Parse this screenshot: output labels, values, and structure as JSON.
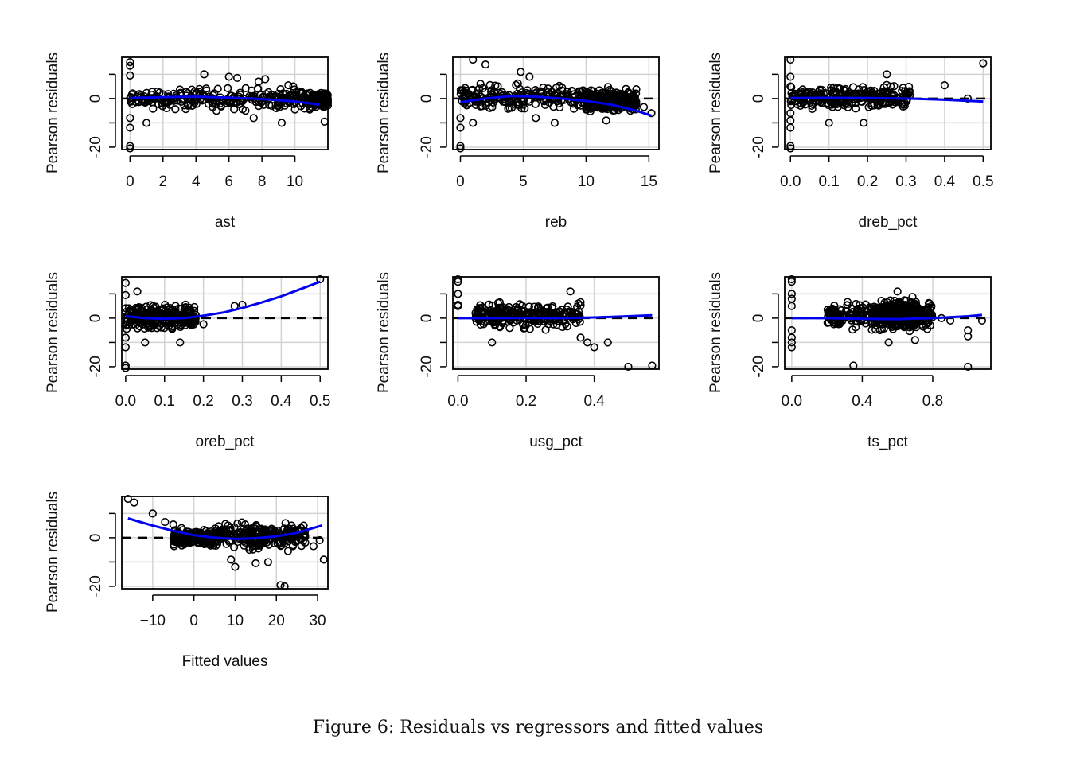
{
  "figure": {
    "caption": "Figure 6: Residuals vs regressors and fitted values"
  },
  "colors": {
    "smooth": "#0000ee",
    "points": "#000000",
    "grid": "#d3d3d3",
    "zero_line": "#000000"
  },
  "chart_data": [
    {
      "type": "scatter",
      "xlabel": "ast",
      "ylabel": "Pearson residuals",
      "xlim": [
        -0.5,
        12
      ],
      "ylim": [
        -21,
        17
      ],
      "xticks": [
        0,
        2,
        4,
        6,
        8,
        10
      ],
      "xtick_labels": [
        "0",
        "2",
        "4",
        "6",
        "8",
        "10"
      ],
      "yticks": [
        -20,
        -10,
        0,
        10
      ],
      "ytick_labels": [
        "-20",
        "",
        "0",
        ""
      ],
      "grid": true,
      "zero_line": "dashed",
      "cloud": [
        [
          0,
          11,
          -6,
          6
        ],
        [
          11,
          12,
          -4,
          3
        ]
      ],
      "points": [
        [
          0,
          15
        ],
        [
          0,
          13.5
        ],
        [
          0,
          9.5
        ],
        [
          0,
          -8
        ],
        [
          0,
          -12
        ],
        [
          0,
          -19.5
        ],
        [
          0,
          -20.5
        ],
        [
          1,
          -10
        ],
        [
          4.5,
          10
        ],
        [
          6,
          9
        ],
        [
          6.5,
          8.5
        ],
        [
          7,
          -5
        ],
        [
          7.5,
          -8
        ],
        [
          7.8,
          7
        ],
        [
          8.2,
          8
        ],
        [
          8.6,
          1.5
        ],
        [
          9,
          -3
        ],
        [
          9.2,
          -10
        ],
        [
          9.3,
          2
        ],
        [
          9.6,
          5.5
        ],
        [
          9.9,
          5
        ],
        [
          10,
          -4.5
        ],
        [
          10.5,
          0
        ],
        [
          10.9,
          -4
        ],
        [
          11.8,
          -9.5
        ],
        [
          9.5,
          -2
        ]
      ],
      "series": [
        {
          "x": [
            0,
            2,
            4,
            6,
            8,
            10,
            11.5
          ],
          "y": [
            0.2,
            0.6,
            0.8,
            0.4,
            -0.2,
            -1.2,
            -2.5
          ]
        }
      ]
    },
    {
      "type": "scatter",
      "xlabel": "reb",
      "ylabel": "Pearson residuals",
      "xlim": [
        -0.6,
        15.8
      ],
      "ylim": [
        -21,
        17
      ],
      "xticks": [
        0,
        5,
        10,
        15
      ],
      "xtick_labels": [
        "0",
        "5",
        "10",
        "15"
      ],
      "yticks": [
        -20,
        -10,
        0,
        10
      ],
      "ytick_labels": [
        "-20",
        "",
        "0",
        ""
      ],
      "grid": true,
      "zero_line": "dashed",
      "cloud": [
        [
          0,
          14,
          -6,
          7
        ],
        [
          10,
          14,
          -6,
          3
        ]
      ],
      "points": [
        [
          1,
          16
        ],
        [
          2,
          14
        ],
        [
          0,
          -8
        ],
        [
          0,
          -12
        ],
        [
          0,
          -19.5
        ],
        [
          0,
          -20.5
        ],
        [
          1,
          -10
        ],
        [
          4.8,
          11
        ],
        [
          5.5,
          9
        ],
        [
          7.5,
          -10
        ],
        [
          6,
          -8
        ],
        [
          11.6,
          -9
        ],
        [
          12.8,
          -3
        ],
        [
          13.5,
          -4
        ],
        [
          14,
          -2.5
        ],
        [
          14.6,
          -3.5
        ],
        [
          15.2,
          -6
        ]
      ],
      "series": [
        {
          "x": [
            0,
            2,
            4,
            6,
            8,
            10,
            12,
            14,
            15.2
          ],
          "y": [
            -1.5,
            0,
            1,
            0.8,
            0,
            -1,
            -2.5,
            -5,
            -7
          ]
        }
      ]
    },
    {
      "type": "scatter",
      "xlabel": "dreb_pct",
      "ylabel": "Pearson residuals",
      "xlim": [
        -0.015,
        0.52
      ],
      "ylim": [
        -21,
        17
      ],
      "xticks": [
        0,
        0.1,
        0.2,
        0.3,
        0.4,
        0.5
      ],
      "xtick_labels": [
        "0.0",
        "0.1",
        "0.2",
        "0.3",
        "0.4",
        "0.5"
      ],
      "yticks": [
        -20,
        -10,
        0,
        10
      ],
      "ytick_labels": [
        "-20",
        "",
        "0",
        ""
      ],
      "grid": true,
      "zero_line": "dashed",
      "cloud": [
        [
          0,
          0.31,
          -6,
          7
        ]
      ],
      "points": [
        [
          0,
          16
        ],
        [
          0,
          9
        ],
        [
          0,
          5
        ],
        [
          0,
          -6
        ],
        [
          0,
          -9
        ],
        [
          0,
          -12
        ],
        [
          0,
          -19.5
        ],
        [
          0,
          -20.5
        ],
        [
          0.1,
          -10
        ],
        [
          0.19,
          -10
        ],
        [
          0.25,
          10
        ],
        [
          0.26,
          5
        ],
        [
          0.4,
          5.5
        ],
        [
          0.46,
          0
        ],
        [
          0.5,
          14.5
        ]
      ],
      "series": [
        {
          "x": [
            0,
            0.1,
            0.2,
            0.3,
            0.4,
            0.5
          ],
          "y": [
            0.2,
            0.3,
            0.2,
            0,
            -0.5,
            -1.2
          ]
        }
      ]
    },
    {
      "type": "scatter",
      "xlabel": "oreb_pct",
      "ylabel": "Pearson residuals",
      "xlim": [
        -0.01,
        0.52
      ],
      "ylim": [
        -21,
        17
      ],
      "xticks": [
        0,
        0.1,
        0.2,
        0.3,
        0.4,
        0.5
      ],
      "xtick_labels": [
        "0.0",
        "0.1",
        "0.2",
        "0.3",
        "0.4",
        "0.5"
      ],
      "yticks": [
        -20,
        -10,
        0,
        10
      ],
      "ytick_labels": [
        "-20",
        "",
        "0",
        ""
      ],
      "grid": true,
      "zero_line": "dashed",
      "cloud": [
        [
          0,
          0.18,
          -6,
          7
        ]
      ],
      "points": [
        [
          0,
          14.5
        ],
        [
          0,
          9.5
        ],
        [
          0,
          -8
        ],
        [
          0,
          -12
        ],
        [
          0,
          -19.5
        ],
        [
          0,
          -20.5
        ],
        [
          0.03,
          11
        ],
        [
          0.05,
          -10
        ],
        [
          0.14,
          -10
        ],
        [
          0.2,
          -2.5
        ],
        [
          0.28,
          5
        ],
        [
          0.3,
          5.5
        ],
        [
          0.5,
          16
        ]
      ],
      "series": [
        {
          "x": [
            0,
            0.05,
            0.1,
            0.15,
            0.2,
            0.25,
            0.3,
            0.35,
            0.4,
            0.45,
            0.5
          ],
          "y": [
            0.8,
            0,
            -0.3,
            0,
            1,
            2.3,
            4.2,
            6.5,
            9,
            12,
            15
          ]
        }
      ]
    },
    {
      "type": "scatter",
      "xlabel": "usg_pct",
      "ylabel": "Pearson residuals",
      "xlim": [
        -0.015,
        0.59
      ],
      "ylim": [
        -21,
        17
      ],
      "xticks": [
        0,
        0.2,
        0.4
      ],
      "xtick_labels": [
        "0.0",
        "0.2",
        "0.4"
      ],
      "yticks": [
        -20,
        -10,
        0,
        10
      ],
      "ytick_labels": [
        "-20",
        "",
        "0",
        ""
      ],
      "grid": true,
      "zero_line": "dashed",
      "cloud": [
        [
          0.05,
          0.36,
          -6,
          8
        ]
      ],
      "points": [
        [
          0,
          16
        ],
        [
          0,
          15
        ],
        [
          0,
          10
        ],
        [
          0,
          5.5
        ],
        [
          0,
          5
        ],
        [
          0.1,
          -10
        ],
        [
          0.33,
          11
        ],
        [
          0.36,
          -8
        ],
        [
          0.38,
          -10
        ],
        [
          0.4,
          -12
        ],
        [
          0.44,
          -10
        ],
        [
          0.5,
          -20
        ],
        [
          0.57,
          -19.5
        ]
      ],
      "series": [
        {
          "x": [
            0,
            0.1,
            0.2,
            0.3,
            0.4,
            0.5,
            0.57
          ],
          "y": [
            0,
            0,
            0.1,
            0,
            0.3,
            0.8,
            1.2
          ]
        }
      ]
    },
    {
      "type": "scatter",
      "xlabel": "ts_pct",
      "ylabel": "Pearson residuals",
      "xlim": [
        -0.04,
        1.13
      ],
      "ylim": [
        -21,
        17
      ],
      "xticks": [
        0,
        0.4,
        0.8
      ],
      "xtick_labels": [
        "0.0",
        "0.4",
        "0.8"
      ],
      "yticks": [
        -20,
        -10,
        0,
        10
      ],
      "ytick_labels": [
        "-20",
        "",
        "0",
        ""
      ],
      "grid": true,
      "zero_line": "dashed",
      "cloud": [
        [
          0.2,
          0.8,
          -6,
          8
        ],
        [
          0.45,
          0.72,
          -8,
          10
        ]
      ],
      "points": [
        [
          0,
          16
        ],
        [
          0,
          15
        ],
        [
          0,
          10
        ],
        [
          0,
          8
        ],
        [
          0,
          5
        ],
        [
          0,
          -5
        ],
        [
          0,
          -8
        ],
        [
          0,
          -10
        ],
        [
          0,
          -12
        ],
        [
          0.35,
          -19.5
        ],
        [
          0.55,
          -10
        ],
        [
          0.6,
          11
        ],
        [
          0.7,
          -9
        ],
        [
          1,
          -5
        ],
        [
          1,
          -7.5
        ],
        [
          1,
          -20
        ],
        [
          1.08,
          -1
        ],
        [
          0.9,
          -1
        ],
        [
          0.85,
          0
        ]
      ],
      "series": [
        {
          "x": [
            0,
            0.2,
            0.4,
            0.6,
            0.8,
            1,
            1.08
          ],
          "y": [
            0,
            0,
            -0.3,
            -0.4,
            0,
            0.8,
            1.3
          ]
        }
      ]
    },
    {
      "type": "scatter",
      "xlabel": "Fitted values",
      "ylabel": "Pearson residuals",
      "xlim": [
        -17.5,
        32.5
      ],
      "ylim": [
        -21,
        17
      ],
      "xticks": [
        -10,
        0,
        10,
        20,
        30
      ],
      "xtick_labels": [
        "−10",
        "0",
        "10",
        "20",
        "30"
      ],
      "yticks": [
        -20,
        -10,
        0,
        10
      ],
      "ytick_labels": [
        "-20",
        "",
        "0",
        ""
      ],
      "grid": true,
      "zero_line": "dashed",
      "cloud": [
        [
          -5,
          5,
          -4,
          4
        ],
        [
          5,
          27,
          -6,
          8
        ]
      ],
      "points": [
        [
          -16,
          16
        ],
        [
          -14.5,
          14.5
        ],
        [
          -10,
          10
        ],
        [
          -7,
          6.5
        ],
        [
          -5,
          5.5
        ],
        [
          -3,
          4
        ],
        [
          9,
          -9
        ],
        [
          10,
          -12
        ],
        [
          15,
          -10.5
        ],
        [
          18,
          -10
        ],
        [
          21,
          -19.5
        ],
        [
          22,
          -20
        ],
        [
          26,
          4
        ],
        [
          27,
          -2
        ],
        [
          29,
          -3.5
        ],
        [
          30.5,
          -1
        ],
        [
          31.5,
          -9
        ]
      ],
      "series": [
        {
          "x": [
            -16,
            -10,
            -5,
            0,
            5,
            10,
            15,
            20,
            25,
            31
          ],
          "y": [
            8,
            5,
            2.8,
            1,
            0,
            -0.5,
            -0.2,
            0.6,
            2,
            5
          ]
        }
      ]
    }
  ]
}
